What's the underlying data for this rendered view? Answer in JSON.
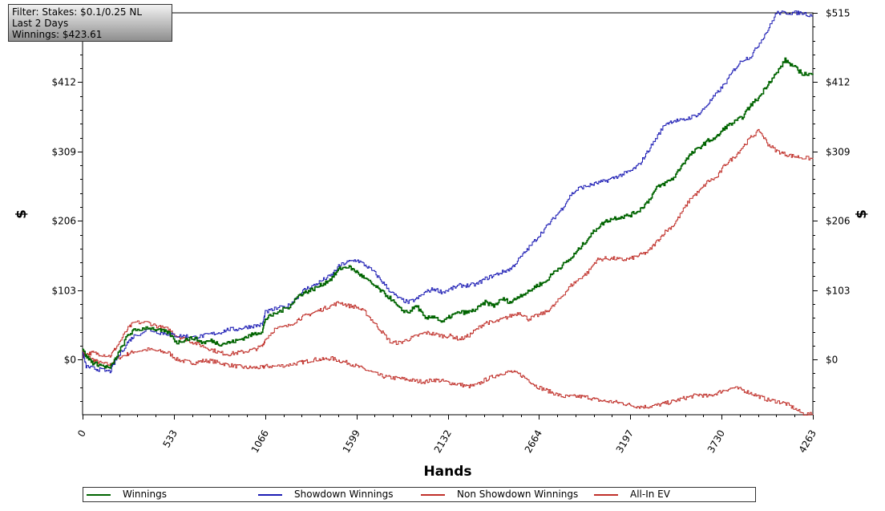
{
  "filter": {
    "line1": "Filter: Stakes: $0.1/0.25 NL",
    "line2": "Last  2 Days",
    "line3": "Winnings: $423.61"
  },
  "colors": {
    "winnings": "#006400",
    "showdown": "#1c1cb4",
    "non_showdown": "#c0302a",
    "allin": "#c0302a",
    "zero_line": "#000000",
    "grid": "#7a7a7a"
  },
  "chart_data": {
    "type": "line",
    "xlabel": "Hands",
    "ylabel": "$",
    "x_ticks": [
      "0",
      "533",
      "1066",
      "1599",
      "2132",
      "2664",
      "3197",
      "3730",
      "4263"
    ],
    "y_ticks": [
      "$0",
      "$103",
      "$206",
      "$309",
      "$412",
      "$515"
    ],
    "y_tick_values": [
      0,
      103,
      206,
      309,
      412,
      515
    ],
    "xlim": [
      0,
      4263
    ],
    "ylim": [
      -82,
      515
    ],
    "grid": true,
    "legend_position": "bottom",
    "series": [
      {
        "name": "Winnings",
        "key": "winnings",
        "x": [
          0,
          20,
          60,
          100,
          160,
          200,
          260,
          300,
          380,
          450,
          500,
          550,
          600,
          650,
          700,
          750,
          800,
          850,
          900,
          950,
          1000,
          1050,
          1066,
          1120,
          1200,
          1260,
          1300,
          1350,
          1400,
          1450,
          1500,
          1550,
          1599,
          1650,
          1700,
          1750,
          1800,
          1850,
          1900,
          1950,
          2000,
          2050,
          2100,
          2150,
          2200,
          2250,
          2300,
          2350,
          2400,
          2450,
          2500,
          2550,
          2600,
          2650,
          2700,
          2750,
          2800,
          2850,
          2900,
          2950,
          3000,
          3050,
          3100,
          3150,
          3200,
          3250,
          3300,
          3350,
          3400,
          3450,
          3500,
          3550,
          3600,
          3650,
          3700,
          3750,
          3800,
          3850,
          3900,
          3950,
          4000,
          4050,
          4100,
          4150,
          4200,
          4263
        ],
        "y": [
          18,
          5,
          -5,
          -8,
          -13,
          5,
          35,
          43,
          48,
          43,
          40,
          25,
          30,
          32,
          25,
          28,
          23,
          25,
          28,
          33,
          38,
          42,
          60,
          68,
          78,
          95,
          100,
          105,
          112,
          120,
          135,
          138,
          130,
          120,
          110,
          100,
          90,
          75,
          70,
          80,
          60,
          65,
          55,
          65,
          70,
          70,
          75,
          85,
          80,
          90,
          85,
          95,
          100,
          110,
          115,
          130,
          140,
          150,
          165,
          180,
          195,
          205,
          210,
          212,
          215,
          222,
          235,
          255,
          262,
          270,
          290,
          305,
          315,
          325,
          330,
          345,
          352,
          360,
          378,
          390,
          410,
          425,
          445,
          435,
          425,
          423
        ]
      },
      {
        "name": "Showdown Winnings",
        "key": "showdown",
        "x": [
          0,
          20,
          60,
          100,
          160,
          200,
          260,
          300,
          380,
          450,
          500,
          550,
          600,
          650,
          700,
          750,
          800,
          850,
          900,
          950,
          1000,
          1050,
          1066,
          1120,
          1200,
          1260,
          1300,
          1350,
          1400,
          1450,
          1500,
          1550,
          1599,
          1650,
          1700,
          1750,
          1800,
          1850,
          1900,
          1950,
          2000,
          2050,
          2100,
          2150,
          2200,
          2250,
          2300,
          2350,
          2400,
          2450,
          2500,
          2550,
          2600,
          2650,
          2700,
          2750,
          2800,
          2850,
          2900,
          2950,
          3000,
          3050,
          3100,
          3150,
          3200,
          3250,
          3300,
          3350,
          3400,
          3450,
          3500,
          3550,
          3600,
          3650,
          3700,
          3750,
          3800,
          3850,
          3900,
          3950,
          4000,
          4050,
          4100,
          4150,
          4200,
          4263
        ],
        "y": [
          10,
          -10,
          -13,
          -15,
          -18,
          2,
          25,
          35,
          45,
          40,
          38,
          35,
          35,
          33,
          35,
          38,
          40,
          45,
          45,
          48,
          50,
          52,
          70,
          75,
          80,
          95,
          105,
          110,
          118,
          125,
          140,
          145,
          148,
          140,
          130,
          115,
          100,
          90,
          85,
          90,
          100,
          105,
          100,
          105,
          110,
          110,
          112,
          120,
          125,
          130,
          135,
          150,
          165,
          180,
          195,
          210,
          225,
          245,
          255,
          258,
          262,
          265,
          270,
          275,
          280,
          290,
          310,
          330,
          350,
          355,
          355,
          360,
          365,
          380,
          395,
          410,
          430,
          445,
          450,
          470,
          490,
          515,
          515,
          515,
          515,
          510
        ]
      },
      {
        "name": "Non Showdown Winnings",
        "key": "non_showdown",
        "x": [
          0,
          20,
          60,
          100,
          160,
          200,
          260,
          300,
          380,
          450,
          500,
          550,
          600,
          650,
          700,
          750,
          800,
          850,
          900,
          950,
          1000,
          1050,
          1066,
          1120,
          1200,
          1260,
          1300,
          1350,
          1400,
          1450,
          1500,
          1550,
          1599,
          1650,
          1700,
          1750,
          1800,
          1850,
          1900,
          1950,
          2000,
          2050,
          2100,
          2150,
          2200,
          2250,
          2300,
          2350,
          2400,
          2450,
          2500,
          2550,
          2600,
          2650,
          2700,
          2750,
          2800,
          2850,
          2900,
          2950,
          3000,
          3050,
          3100,
          3150,
          3200,
          3250,
          3300,
          3350,
          3400,
          3450,
          3500,
          3550,
          3600,
          3650,
          3700,
          3750,
          3800,
          3850,
          3900,
          3950,
          4000,
          4050,
          4100,
          4150,
          4200,
          4263
        ],
        "y": [
          5,
          8,
          10,
          8,
          5,
          20,
          45,
          55,
          55,
          48,
          45,
          35,
          30,
          25,
          20,
          15,
          10,
          8,
          10,
          12,
          15,
          20,
          30,
          45,
          50,
          60,
          65,
          70,
          75,
          80,
          85,
          80,
          78,
          70,
          55,
          40,
          25,
          25,
          30,
          35,
          40,
          38,
          35,
          35,
          30,
          35,
          45,
          55,
          55,
          60,
          65,
          70,
          60,
          65,
          70,
          80,
          95,
          110,
          120,
          130,
          148,
          150,
          150,
          148,
          150,
          155,
          160,
          175,
          190,
          200,
          220,
          240,
          250,
          265,
          270,
          290,
          300,
          315,
          330,
          340,
          320,
          310,
          305,
          302,
          300,
          298
        ]
      },
      {
        "name": "All-In EV",
        "key": "allin",
        "x": [
          0,
          20,
          60,
          100,
          160,
          200,
          260,
          300,
          380,
          450,
          500,
          550,
          600,
          650,
          700,
          750,
          800,
          850,
          900,
          950,
          1000,
          1050,
          1066,
          1120,
          1200,
          1260,
          1300,
          1350,
          1400,
          1450,
          1500,
          1550,
          1599,
          1650,
          1700,
          1750,
          1800,
          1850,
          1900,
          1950,
          2000,
          2050,
          2100,
          2150,
          2200,
          2250,
          2300,
          2350,
          2400,
          2450,
          2500,
          2550,
          2600,
          2650,
          2700,
          2750,
          2800,
          2850,
          2900,
          2950,
          3000,
          3050,
          3100,
          3150,
          3200,
          3250,
          3300,
          3350,
          3400,
          3450,
          3500,
          3550,
          3600,
          3650,
          3700,
          3750,
          3800,
          3850,
          3900,
          3950,
          4000,
          4050,
          4100,
          4150,
          4200,
          4263
        ],
        "y": [
          12,
          5,
          0,
          -5,
          -8,
          2,
          8,
          12,
          15,
          12,
          10,
          0,
          -3,
          -5,
          -2,
          -2,
          -5,
          -8,
          -10,
          -12,
          -12,
          -12,
          -10,
          -10,
          -8,
          -5,
          -3,
          0,
          0,
          2,
          -2,
          -5,
          -10,
          -15,
          -20,
          -25,
          -27,
          -28,
          -30,
          -32,
          -33,
          -30,
          -32,
          -35,
          -37,
          -40,
          -38,
          -30,
          -25,
          -20,
          -18,
          -22,
          -30,
          -40,
          -45,
          -50,
          -55,
          -55,
          -55,
          -56,
          -60,
          -62,
          -63,
          -65,
          -68,
          -70,
          -70,
          -68,
          -65,
          -62,
          -58,
          -55,
          -52,
          -55,
          -50,
          -45,
          -42,
          -45,
          -50,
          -55,
          -60,
          -62,
          -65,
          -72,
          -80,
          -82
        ]
      }
    ]
  }
}
